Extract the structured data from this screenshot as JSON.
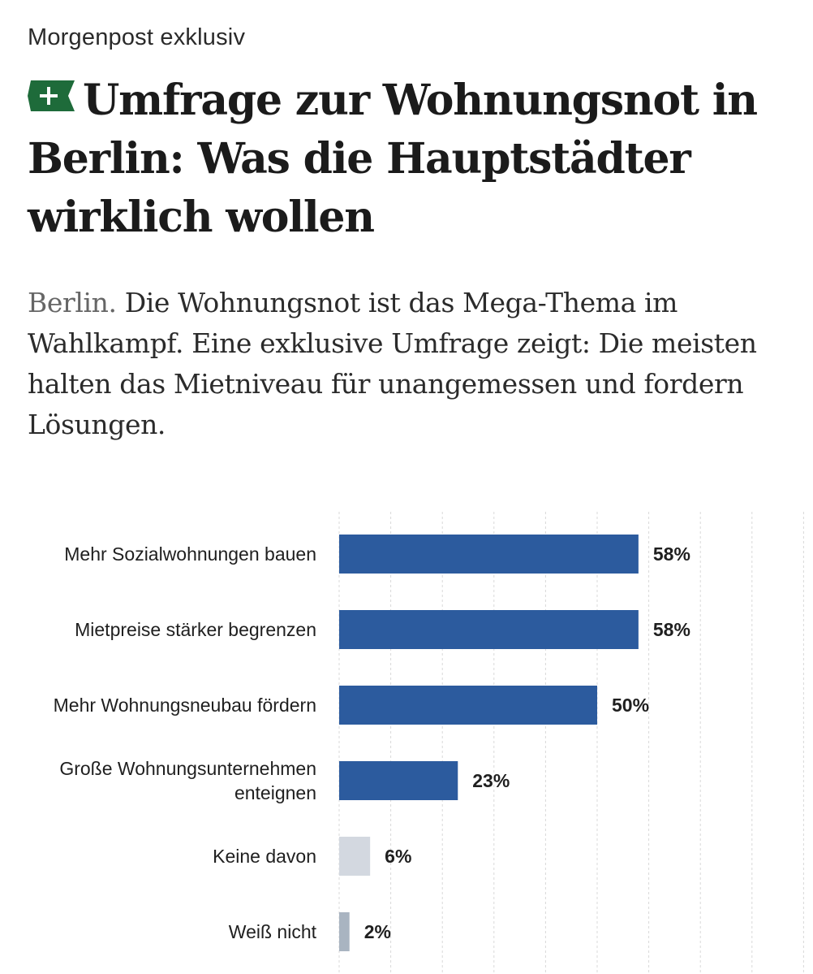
{
  "article": {
    "kicker": "Morgenpost exklusiv",
    "badge_icon": "plus-icon",
    "headline": "Umfrage zur Wohnungsnot in Berlin: Was die Hauptstädter wirklich wollen",
    "dateline": "Berlin.",
    "teaser": " Die Wohnungsnot ist das Mega-Thema im Wahlkampf. Eine exklusive Umfrage zeigt: Die meisten halten das Mietniveau für unangemessen und fordern Lösungen."
  },
  "colors": {
    "badge_green": "#1e6b3a",
    "bar_primary": "#2c5b9e",
    "bar_light": "#d3d8e0",
    "bar_gray": "#a9b4c1",
    "grid": "#d9d9d9"
  },
  "chart_data": {
    "type": "bar",
    "orientation": "horizontal",
    "categories": [
      [
        "Mehr Sozialwohnungen bauen"
      ],
      [
        "Mietpreise stärker begrenzen"
      ],
      [
        "Mehr Wohnungsneubau fördern"
      ],
      [
        "Große Wohnungsunternehmen",
        "enteignen"
      ],
      [
        "Keine davon"
      ],
      [
        "Weiß nicht"
      ]
    ],
    "values": [
      58,
      58,
      50,
      23,
      6,
      2
    ],
    "value_labels": [
      "58%",
      "58%",
      "50%",
      "23%",
      "6%",
      "2%"
    ],
    "bar_colors": [
      "#2c5b9e",
      "#2c5b9e",
      "#2c5b9e",
      "#2c5b9e",
      "#d3d8e0",
      "#a9b4c1"
    ],
    "xlim": [
      0,
      90
    ],
    "grid_step": 10,
    "grid": true
  }
}
